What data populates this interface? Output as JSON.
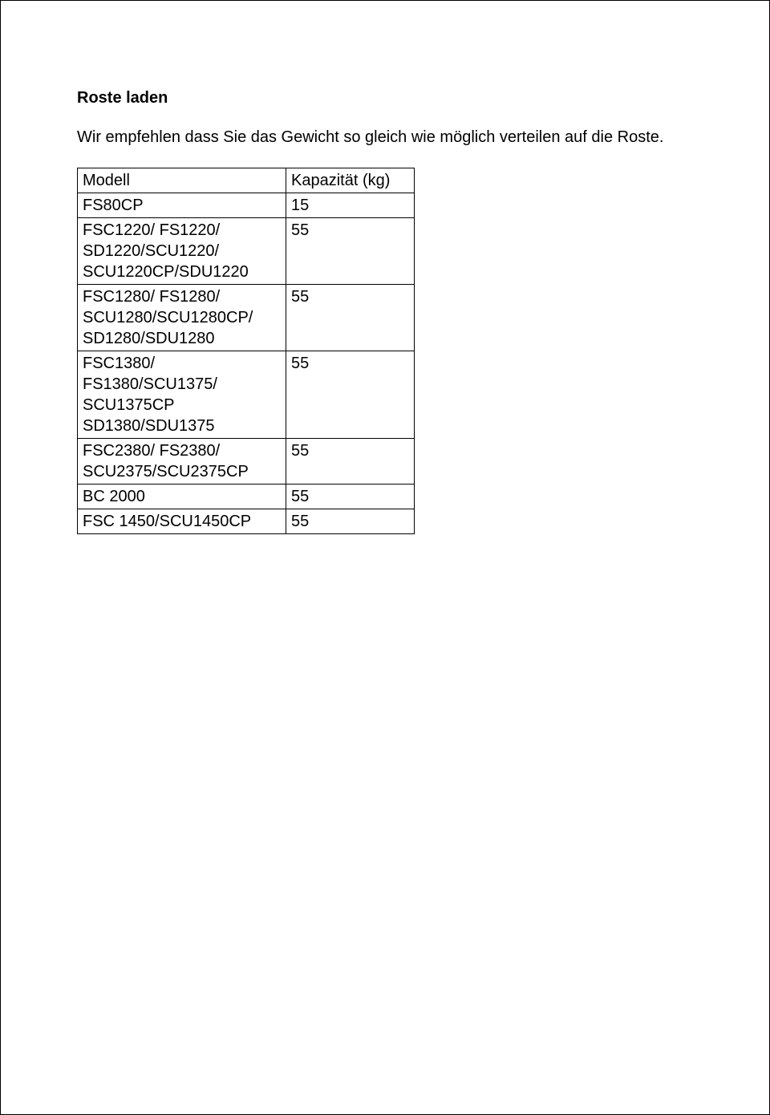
{
  "heading": "Roste laden",
  "intro": "Wir empfehlen dass Sie das Gewicht so gleich wie möglich verteilen auf die Roste.",
  "table": {
    "columns": [
      "Modell",
      "Kapazität (kg)"
    ],
    "rows": [
      {
        "model": "FS80CP",
        "capacity": "15"
      },
      {
        "model": "FSC1220/ FS1220/\nSD1220/SCU1220/\nSCU1220CP/SDU1220",
        "capacity": "55"
      },
      {
        "model": "FSC1280/ FS1280/\nSCU1280/SCU1280CP/\nSD1280/SDU1280",
        "capacity": "55"
      },
      {
        "model": "FSC1380/\nFS1380/SCU1375/\nSCU1375CP\nSD1380/SDU1375",
        "capacity": "55"
      },
      {
        "model": "FSC2380/ FS2380/\nSCU2375/SCU2375CP",
        "capacity": "55"
      },
      {
        "model": "BC 2000",
        "capacity": "55"
      },
      {
        "model": "FSC 1450/SCU1450CP",
        "capacity": "55"
      }
    ]
  }
}
